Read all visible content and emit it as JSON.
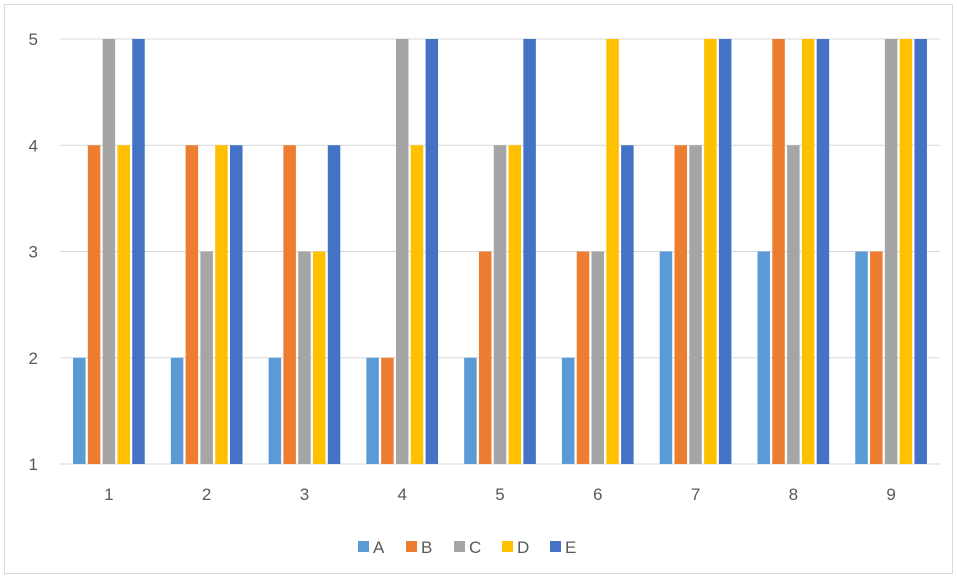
{
  "chart_data": {
    "type": "bar",
    "title": "",
    "xlabel": "",
    "ylabel": "",
    "categories": [
      "1",
      "2",
      "3",
      "4",
      "5",
      "6",
      "7",
      "8",
      "9"
    ],
    "ylim": [
      1,
      5
    ],
    "yticks": [
      "1",
      "2",
      "3",
      "4",
      "5"
    ],
    "grid": true,
    "legend_position": "bottom",
    "series": [
      {
        "name": "A",
        "color": "#5b9bd5",
        "values": [
          2,
          2,
          2,
          2,
          2,
          2,
          3,
          3,
          3
        ]
      },
      {
        "name": "B",
        "color": "#ed7d31",
        "values": [
          4,
          4,
          4,
          2,
          3,
          3,
          4,
          5,
          3
        ]
      },
      {
        "name": "C",
        "color": "#a5a5a5",
        "values": [
          5,
          3,
          3,
          5,
          4,
          3,
          4,
          4,
          5
        ]
      },
      {
        "name": "D",
        "color": "#ffc000",
        "values": [
          4,
          4,
          3,
          4,
          4,
          5,
          5,
          5,
          5
        ]
      },
      {
        "name": "E",
        "color": "#4472c4",
        "values": [
          5,
          4,
          4,
          5,
          5,
          4,
          5,
          5,
          5
        ]
      }
    ]
  }
}
